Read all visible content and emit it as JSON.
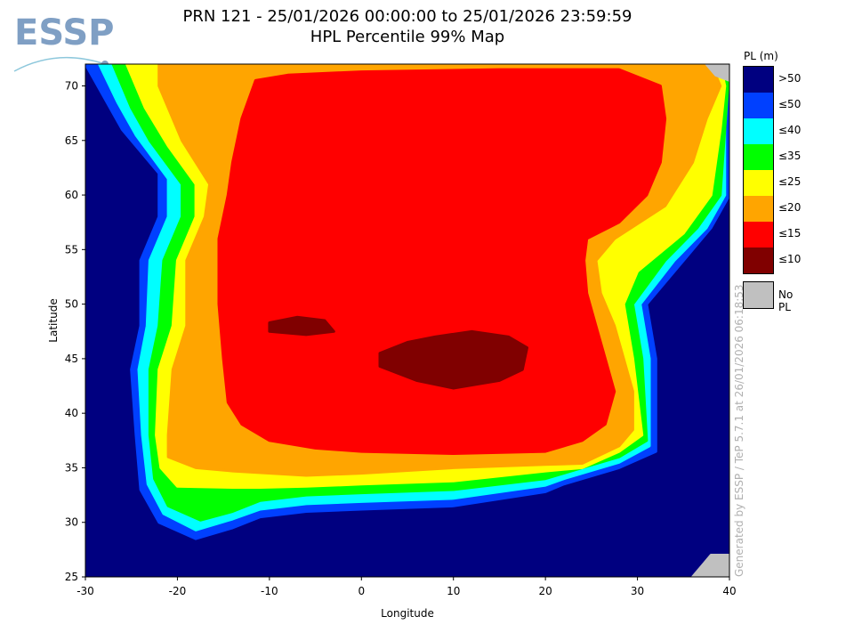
{
  "logo": {
    "text": "ESSP"
  },
  "title": {
    "line1": "PRN 121 - 25/01/2026 00:00:00 to 25/01/2026 23:59:59",
    "line2": "HPL Percentile 99% Map"
  },
  "watermark": "Generated by ESSP / TeP 5.7.1 at 26/01/2026 06:18:53",
  "legend": {
    "title": "PL (m)",
    "items": [
      {
        "label": ">50",
        "color": "#000080"
      },
      {
        "label": "≤50",
        "color": "#0040ff"
      },
      {
        "label": "≤40",
        "color": "#00ffff"
      },
      {
        "label": "≤35",
        "color": "#00ff00"
      },
      {
        "label": "≤25",
        "color": "#ffff00"
      },
      {
        "label": "≤20",
        "color": "#ffa500"
      },
      {
        "label": "≤15",
        "color": "#ff0000"
      },
      {
        "label": "≤10",
        "color": "#800000"
      }
    ],
    "no_pl": {
      "label": "No PL",
      "color": "#c0c0c0"
    }
  },
  "chart_data": {
    "type": "heatmap",
    "title": "HPL Percentile 99% Map",
    "xlabel": "Longitude",
    "ylabel": "Latitude",
    "xlim": [
      -30,
      40
    ],
    "ylim": [
      25,
      72
    ],
    "xticks": [
      "-30",
      "-20",
      "-10",
      "0",
      "10",
      "20",
      "30",
      "40"
    ],
    "yticks": [
      "25",
      "30",
      "35",
      "40",
      "45",
      "50",
      "55",
      "60",
      "65",
      "70"
    ],
    "background_color": "#000080",
    "regions": [
      {
        "name": "le50",
        "color": "#0040ff",
        "poly": [
          [
            -30,
            72
          ],
          [
            -28,
            69
          ],
          [
            -26,
            66
          ],
          [
            -22,
            62
          ],
          [
            -22,
            58
          ],
          [
            -24,
            54
          ],
          [
            -24,
            48
          ],
          [
            -25,
            44
          ],
          [
            -24.5,
            38
          ],
          [
            -24,
            33
          ],
          [
            -22,
            30
          ],
          [
            -18,
            28.5
          ],
          [
            -14,
            29.5
          ],
          [
            -11,
            30.5
          ],
          [
            -6,
            31
          ],
          [
            0,
            31.2
          ],
          [
            10,
            31.5
          ],
          [
            20,
            32.8
          ],
          [
            22,
            33.5
          ],
          [
            28,
            35
          ],
          [
            32,
            36.5
          ],
          [
            32,
            45
          ],
          [
            31,
            50
          ],
          [
            35,
            54
          ],
          [
            38,
            57
          ],
          [
            40,
            60
          ],
          [
            40,
            72
          ]
        ]
      },
      {
        "name": "le40",
        "color": "#00ffff",
        "poly": [
          [
            -28.5,
            72
          ],
          [
            -26.5,
            68.5
          ],
          [
            -24.5,
            65.5
          ],
          [
            -21,
            61.5
          ],
          [
            -21,
            58
          ],
          [
            -23,
            54
          ],
          [
            -23.3,
            48
          ],
          [
            -24.2,
            44
          ],
          [
            -23.8,
            38
          ],
          [
            -23.2,
            33.5
          ],
          [
            -21.5,
            30.8
          ],
          [
            -18,
            29.3
          ],
          [
            -14,
            30.3
          ],
          [
            -11,
            31.2
          ],
          [
            -6,
            31.7
          ],
          [
            0,
            31.9
          ],
          [
            10,
            32.2
          ],
          [
            20,
            33.4
          ],
          [
            22,
            34
          ],
          [
            28,
            35.5
          ],
          [
            31.3,
            37
          ],
          [
            31.3,
            45
          ],
          [
            30.3,
            50
          ],
          [
            34,
            54
          ],
          [
            37.5,
            57
          ],
          [
            39.5,
            60
          ],
          [
            39.5,
            72
          ]
        ]
      },
      {
        "name": "le35",
        "color": "#00ff00",
        "poly": [
          [
            -27,
            72
          ],
          [
            -25,
            68
          ],
          [
            -23,
            65
          ],
          [
            -19.5,
            61
          ],
          [
            -19.5,
            58
          ],
          [
            -21.5,
            54
          ],
          [
            -22,
            48
          ],
          [
            -23,
            44
          ],
          [
            -23,
            38
          ],
          [
            -22.5,
            34
          ],
          [
            -21,
            31.5
          ],
          [
            -17.5,
            30.2
          ],
          [
            -14,
            31
          ],
          [
            -11,
            32
          ],
          [
            -6,
            32.5
          ],
          [
            0,
            32.7
          ],
          [
            10,
            33
          ],
          [
            20,
            34
          ],
          [
            22,
            34.5
          ],
          [
            28,
            36
          ],
          [
            31,
            37.5
          ],
          [
            30.5,
            45
          ],
          [
            29.5,
            50
          ],
          [
            33,
            54
          ],
          [
            36.5,
            57
          ],
          [
            39,
            60
          ],
          [
            39.5,
            66
          ],
          [
            40,
            72
          ]
        ]
      },
      {
        "name": "le25",
        "color": "#ffff00",
        "poly": [
          [
            -25.5,
            72
          ],
          [
            -23.5,
            68
          ],
          [
            -21,
            64.5
          ],
          [
            -18,
            61
          ],
          [
            -18,
            58
          ],
          [
            -20,
            54
          ],
          [
            -20.5,
            48
          ],
          [
            -22,
            44
          ],
          [
            -22.3,
            38
          ],
          [
            -21.8,
            35
          ],
          [
            -20,
            33.3
          ],
          [
            -14,
            33.2
          ],
          [
            -11,
            33.2
          ],
          [
            -6,
            33.3
          ],
          [
            0,
            33.5
          ],
          [
            10,
            33.8
          ],
          [
            20,
            34.7
          ],
          [
            24,
            35
          ],
          [
            28,
            36.5
          ],
          [
            30.5,
            38
          ],
          [
            29.5,
            45
          ],
          [
            28.5,
            50
          ],
          [
            30,
            53
          ],
          [
            35,
            56.5
          ],
          [
            38,
            60
          ],
          [
            39,
            66
          ],
          [
            39.5,
            70
          ],
          [
            39,
            72
          ]
        ]
      },
      {
        "name": "le20",
        "color": "#ffa500",
        "poly": [
          [
            -22,
            72
          ],
          [
            -22,
            70
          ],
          [
            -19.5,
            65
          ],
          [
            -16.5,
            61
          ],
          [
            -17,
            58
          ],
          [
            -19,
            54
          ],
          [
            -19,
            48
          ],
          [
            -20.5,
            44
          ],
          [
            -21,
            38
          ],
          [
            -21,
            36
          ],
          [
            -18,
            35
          ],
          [
            -14,
            34.7
          ],
          [
            -6,
            34.3
          ],
          [
            0,
            34.5
          ],
          [
            10,
            35
          ],
          [
            20,
            35.3
          ],
          [
            24,
            35.4
          ],
          [
            28,
            37
          ],
          [
            29.5,
            38.5
          ],
          [
            29.5,
            42
          ],
          [
            28.5,
            45
          ],
          [
            27.5,
            48
          ],
          [
            26,
            51
          ],
          [
            25.5,
            54
          ],
          [
            27.5,
            56
          ],
          [
            33,
            59
          ],
          [
            36,
            63
          ],
          [
            37.5,
            67
          ],
          [
            39,
            70
          ],
          [
            38,
            72
          ]
        ]
      },
      {
        "name": "le15",
        "color": "#ff0000",
        "poly": [
          [
            -11.5,
            70.5
          ],
          [
            -13,
            67
          ],
          [
            -14,
            63
          ],
          [
            -14.5,
            60
          ],
          [
            -15.5,
            56
          ],
          [
            -15.5,
            50
          ],
          [
            -15,
            45
          ],
          [
            -14.5,
            41
          ],
          [
            -13,
            39
          ],
          [
            -10,
            37.5
          ],
          [
            -5,
            36.8
          ],
          [
            0,
            36.5
          ],
          [
            10,
            36.3
          ],
          [
            20,
            36.5
          ],
          [
            24,
            37.5
          ],
          [
            26.5,
            39
          ],
          [
            27.5,
            42
          ],
          [
            26.5,
            45
          ],
          [
            25.5,
            48
          ],
          [
            24.5,
            51
          ],
          [
            24.2,
            54
          ],
          [
            24.5,
            56
          ],
          [
            28,
            57.5
          ],
          [
            31,
            60
          ],
          [
            32.5,
            63
          ],
          [
            33,
            67
          ],
          [
            32.5,
            70
          ],
          [
            28,
            71.5
          ],
          [
            15,
            71.5
          ],
          [
            0,
            71.3
          ],
          [
            -8,
            71
          ]
        ]
      },
      {
        "name": "le10-biscay",
        "color": "#800000",
        "poly": [
          [
            -10,
            48.3
          ],
          [
            -7,
            48.8
          ],
          [
            -4,
            48.5
          ],
          [
            -3,
            47.5
          ],
          [
            -6,
            47.2
          ],
          [
            -10,
            47.5
          ]
        ]
      },
      {
        "name": "le10-alps-adriatic",
        "color": "#800000",
        "poly": [
          [
            2,
            45.5
          ],
          [
            5,
            46.5
          ],
          [
            8,
            47
          ],
          [
            12,
            47.5
          ],
          [
            16,
            47
          ],
          [
            18,
            46
          ],
          [
            17.5,
            44
          ],
          [
            15,
            43
          ],
          [
            10,
            42.3
          ],
          [
            6,
            43
          ],
          [
            2,
            44.3
          ]
        ]
      },
      {
        "name": "no-pl-northeast",
        "color": "#c0c0c0",
        "poly": [
          [
            37.5,
            72
          ],
          [
            40,
            72
          ],
          [
            40,
            70.5
          ],
          [
            38.5,
            71
          ]
        ]
      },
      {
        "name": "no-pl-southeast",
        "color": "#c0c0c0",
        "poly": [
          [
            36,
            25
          ],
          [
            37,
            26
          ],
          [
            38,
            27
          ],
          [
            40,
            27
          ],
          [
            40,
            25
          ]
        ]
      }
    ]
  }
}
